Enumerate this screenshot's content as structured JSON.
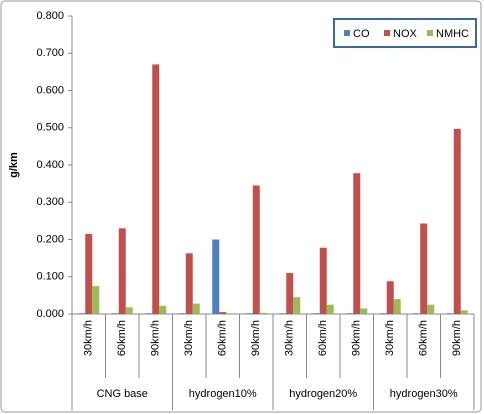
{
  "chart_data": {
    "type": "bar",
    "y_label": "g/km",
    "categories": [
      "30km/h",
      "60km/h",
      "90km/h",
      "30km/h",
      "60km/h",
      "90km/h",
      "30km/h",
      "60km/h",
      "90km/h",
      "30km/h",
      "60km/h",
      "90km/h"
    ],
    "groups": [
      "CNG base",
      "hydrogen10%",
      "hydrogen20%",
      "hydrogen30%"
    ],
    "series": [
      {
        "name": "CO",
        "color": "#4f81bd",
        "values": [
          0.002,
          0.002,
          0.002,
          0.002,
          0.2,
          0.002,
          0.002,
          0.002,
          0.002,
          0.002,
          0.002,
          0.002
        ]
      },
      {
        "name": "NOX",
        "color": "#c0504d",
        "values": [
          0.215,
          0.23,
          0.67,
          0.163,
          0.005,
          0.345,
          0.11,
          0.178,
          0.378,
          0.088,
          0.243,
          0.497
        ]
      },
      {
        "name": "NMHC",
        "color": "#9bbb59",
        "values": [
          0.075,
          0.018,
          0.022,
          0.028,
          0.002,
          0.003,
          0.045,
          0.025,
          0.015,
          0.04,
          0.025,
          0.01
        ]
      }
    ],
    "ylim": [
      0,
      0.8
    ],
    "yticks": [
      {
        "value": 0,
        "label": "0.000"
      },
      {
        "value": 0.1,
        "label": "0.100"
      },
      {
        "value": 0.2,
        "label": "0.200"
      },
      {
        "value": 0.3,
        "label": "0.300"
      },
      {
        "value": 0.4,
        "label": "0.400"
      },
      {
        "value": 0.5,
        "label": "0.500"
      },
      {
        "value": 0.6,
        "label": "0.600"
      },
      {
        "value": 0.7,
        "label": "0.700"
      },
      {
        "value": 0.8,
        "label": "0.800"
      }
    ],
    "grid": false,
    "legend": "top-right"
  }
}
